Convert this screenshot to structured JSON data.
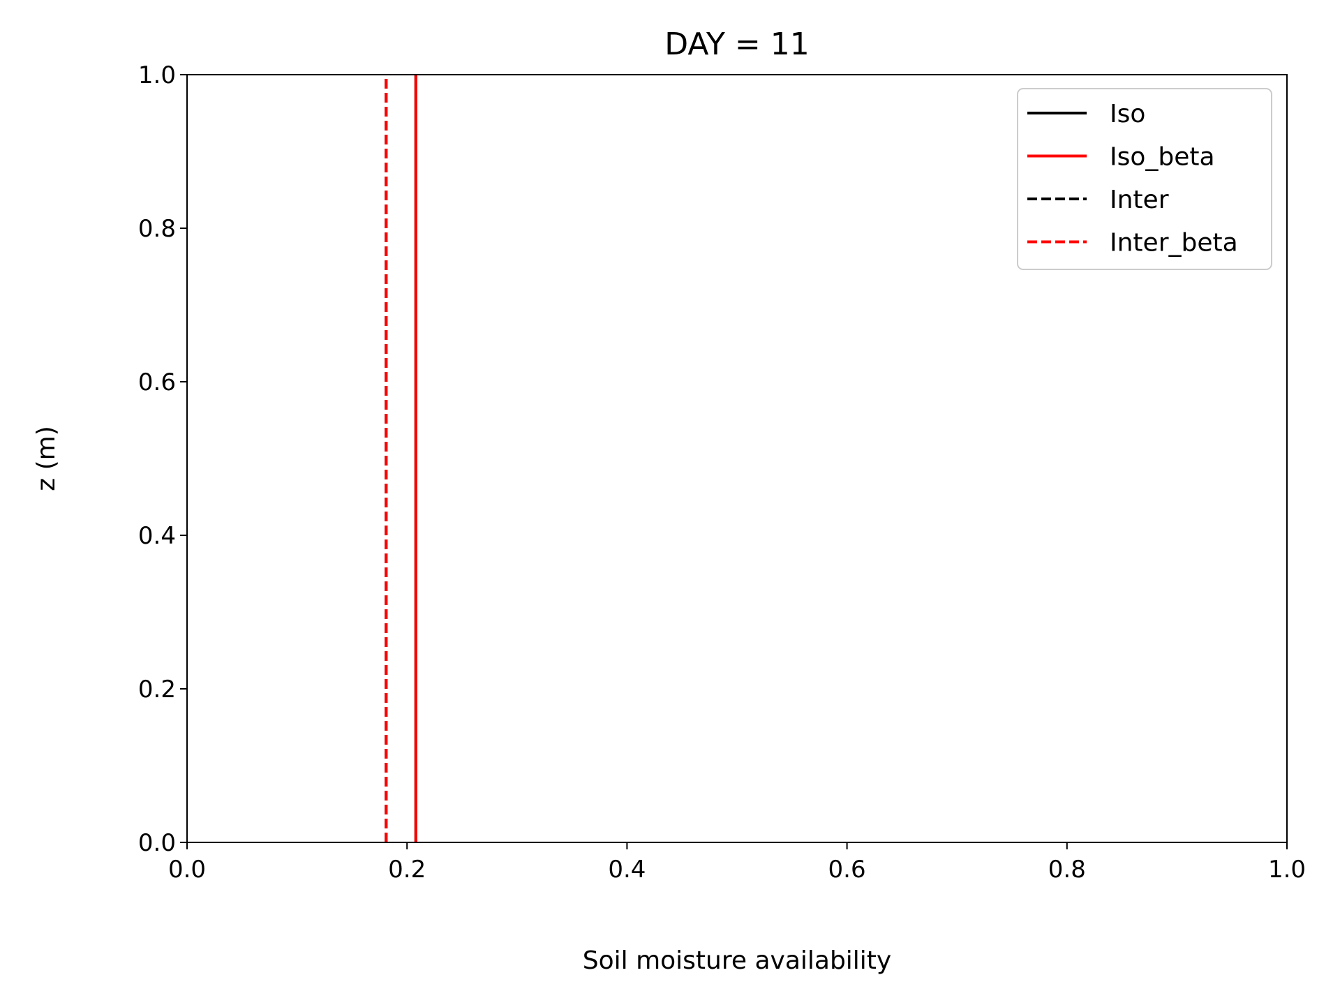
{
  "chart_data": {
    "type": "line",
    "title": "DAY = 11",
    "xlabel": "Soil moisture availability",
    "ylabel": "z (m)",
    "xlim": [
      0.0,
      1.0
    ],
    "ylim": [
      0.0,
      1.0
    ],
    "xticks": [
      "0.0",
      "0.2",
      "0.4",
      "0.6",
      "0.8",
      "1.0"
    ],
    "yticks": [
      "0.0",
      "0.2",
      "0.4",
      "0.6",
      "0.8",
      "1.0"
    ],
    "grid": false,
    "legend_position": "top-right",
    "series": [
      {
        "name": "Iso",
        "color": "#000000",
        "dashed": false,
        "x": [
          0.208,
          0.208
        ],
        "y": [
          0.0,
          1.0
        ]
      },
      {
        "name": "Iso_beta",
        "color": "#ff0000",
        "dashed": false,
        "x": [
          0.208,
          0.208
        ],
        "y": [
          0.0,
          1.0
        ]
      },
      {
        "name": "Inter",
        "color": "#000000",
        "dashed": true,
        "x": [
          0.181,
          0.181
        ],
        "y": [
          0.0,
          1.0
        ]
      },
      {
        "name": "Inter_beta",
        "color": "#ff0000",
        "dashed": true,
        "x": [
          0.181,
          0.181
        ],
        "y": [
          0.0,
          1.0
        ]
      }
    ]
  }
}
